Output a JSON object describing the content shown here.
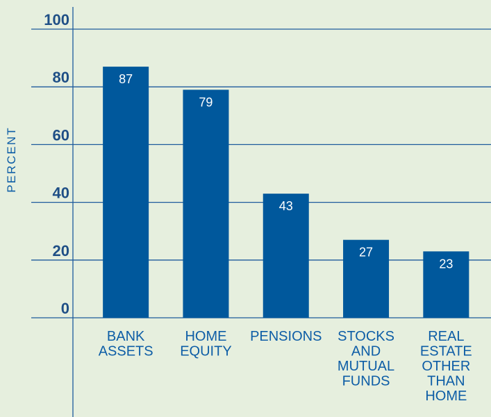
{
  "chart_data": {
    "type": "bar",
    "y_axis_label": "PERCENT",
    "categories": [
      "BANK ASSETS",
      "HOME EQUITY",
      "PENSIONS",
      "STOCKS AND MUTUAL FUNDS",
      "REAL ESTATE OTHER THAN HOME"
    ],
    "values": [
      87,
      79,
      43,
      27,
      23
    ],
    "color": "#00589c",
    "ylim": [
      0,
      100
    ],
    "yticks": [
      0,
      20,
      40,
      60,
      80,
      100
    ],
    "grid": true
  }
}
